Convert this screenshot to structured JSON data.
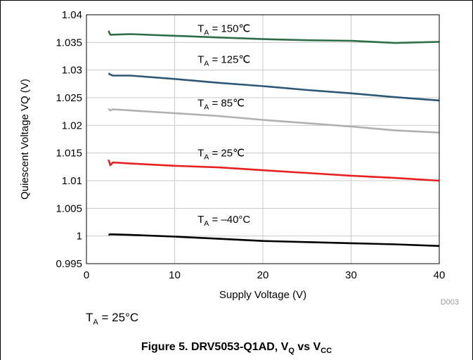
{
  "chart_data": {
    "type": "line",
    "xlabel": "Supply Voltage (V)",
    "ylabel": "Quiescent Voltage VQ (V)",
    "xlim": [
      0,
      40
    ],
    "ylim": [
      0.995,
      1.04
    ],
    "xticks": [
      0,
      10,
      20,
      30,
      40
    ],
    "xtick_labels": [
      "0",
      "10",
      "20",
      "30",
      "40"
    ],
    "yticks": [
      0.995,
      1,
      1.005,
      1.01,
      1.015,
      1.02,
      1.025,
      1.03,
      1.035,
      1.04
    ],
    "ytick_labels": [
      "0.995",
      "1",
      "1.005",
      "1.01",
      "1.015",
      "1.02",
      "1.025",
      "1.03",
      "1.035",
      "1.04"
    ],
    "grid": true,
    "figure_code": "D003",
    "series": [
      {
        "name": "TA = 150℃",
        "label_main": "T",
        "label_sub": "A",
        "label_rest": " = 150℃",
        "color": "#2e6e47",
        "x": [
          2.5,
          2.7,
          3,
          5,
          10,
          15,
          20,
          25,
          30,
          35,
          40
        ],
        "y": [
          1.0371,
          1.0364,
          1.0364,
          1.0365,
          1.0362,
          1.0359,
          1.0356,
          1.0354,
          1.0353,
          1.0349,
          1.0351
        ]
      },
      {
        "name": "TA = 125℃",
        "label_main": "T",
        "label_sub": "A",
        "label_rest": " = 125℃",
        "color": "#2c5775",
        "x": [
          2.5,
          2.7,
          3,
          5,
          10,
          15,
          20,
          25,
          30,
          35,
          40
        ],
        "y": [
          1.0294,
          1.0292,
          1.029,
          1.029,
          1.0284,
          1.0277,
          1.0271,
          1.0264,
          1.0258,
          1.0251,
          1.0245
        ]
      },
      {
        "name": "TA = 85℃",
        "label_main": "T",
        "label_sub": "A",
        "label_rest": " = 85℃",
        "color": "#b0b0b0",
        "x": [
          2.5,
          2.7,
          3,
          5,
          10,
          15,
          20,
          25,
          30,
          35,
          40
        ],
        "y": [
          1.023,
          1.0227,
          1.0229,
          1.0227,
          1.0222,
          1.0217,
          1.021,
          1.0204,
          1.0198,
          1.0191,
          1.0187
        ]
      },
      {
        "name": "TA = 25℃",
        "label_main": "T",
        "label_sub": "A",
        "label_rest": " = 25℃",
        "color": "#e8201f",
        "x": [
          2.5,
          2.7,
          3,
          5,
          10,
          15,
          20,
          25,
          30,
          35,
          40
        ],
        "y": [
          1.0138,
          1.0128,
          1.0133,
          1.0131,
          1.0127,
          1.0124,
          1.0119,
          1.0114,
          1.0109,
          1.0105,
          1.01
        ]
      },
      {
        "name": "TA = –40°C",
        "label_main": "T",
        "label_sub": "A",
        "label_rest": " = –40°C",
        "color": "#000000",
        "x": [
          2.5,
          2.7,
          3,
          5,
          10,
          15,
          20,
          25,
          30,
          35,
          40
        ],
        "y": [
          1.0002,
          1.0003,
          1.0003,
          1.0002,
          0.9999,
          0.9995,
          0.9991,
          0.9989,
          0.9987,
          0.9985,
          0.9982
        ]
      }
    ]
  },
  "condition": {
    "main": "T",
    "sub": "A",
    "rest": " = 25°C"
  },
  "caption": {
    "pre": "Figure 5. DRV5053-Q1AD, V",
    "sub1": "Q",
    "mid": " vs V",
    "sub2": "CC"
  }
}
